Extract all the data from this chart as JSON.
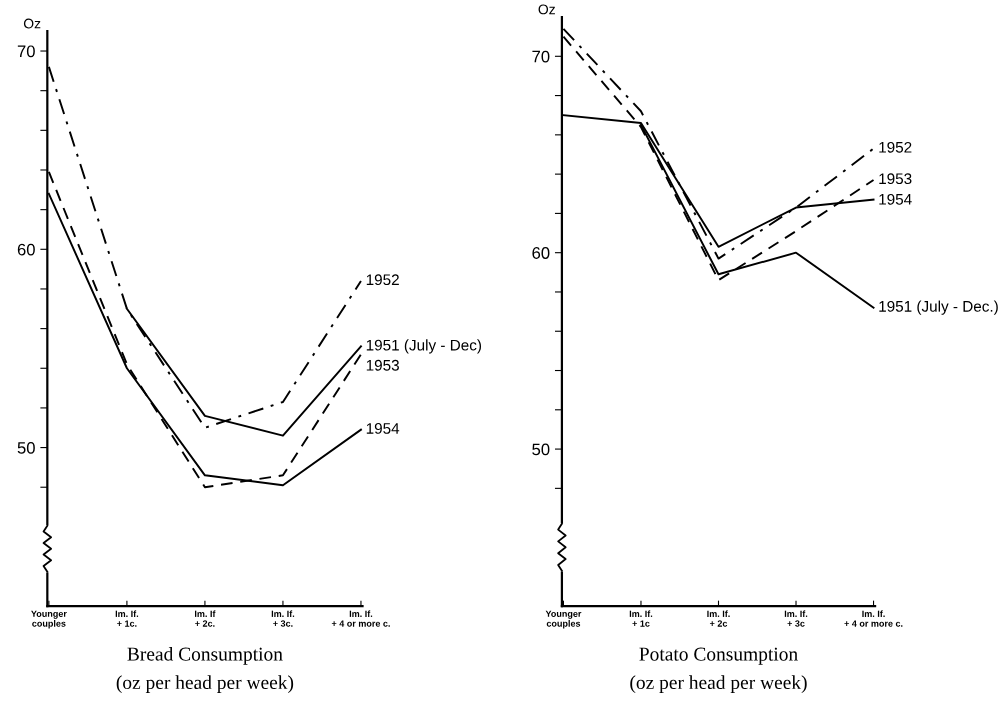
{
  "chart_data": [
    {
      "type": "line",
      "title": "Bread Consumption",
      "subtitle": "(oz per head per week)",
      "ylabel": "Oz",
      "categories": [
        "Younger\ncouples",
        "Im. If.\n+ 1c.",
        "Im. If\n+ 2c.",
        "Im. If.\n+ 3c.",
        "Im. If.\n+ 4 or more c."
      ],
      "ylim": [
        42,
        71
      ],
      "yticks": [
        {
          "value": 48,
          "label": null
        },
        50,
        {
          "value": 52,
          "label": null
        },
        {
          "value": 54,
          "label": null
        },
        {
          "value": 56,
          "label": null
        },
        {
          "value": 58,
          "label": null
        },
        60,
        {
          "value": 62,
          "label": null
        },
        {
          "value": 64,
          "label": null
        },
        {
          "value": 66,
          "label": null
        },
        {
          "value": 68,
          "label": null
        },
        70
      ],
      "grid": false,
      "legend": false,
      "marker": "none",
      "series": [
        {
          "name": "1952",
          "color": "#000000",
          "line_style": "dashdot",
          "values": [
            69.2,
            57.0,
            51.0,
            52.3,
            58.4
          ]
        },
        {
          "name": "1951 (July - Dec)",
          "color": "#000000",
          "line_style": "solid",
          "values": [
            null,
            57.0,
            51.6,
            50.6,
            55.1
          ]
        },
        {
          "name": "1953",
          "color": "#000000",
          "line_style": "dashed",
          "values": [
            63.9,
            54.2,
            48.0,
            48.6,
            54.7
          ]
        },
        {
          "name": "1954",
          "color": "#000000",
          "line_style": "solid",
          "values": [
            62.8,
            54.0,
            48.6,
            48.1,
            50.9
          ]
        }
      ]
    },
    {
      "type": "line",
      "title": "Potato Consumption",
      "subtitle": "(oz per head per week)",
      "ylabel": "Oz",
      "categories": [
        "Younger\ncouples",
        "Im. If.\n+ 1c",
        "Im. If.\n+ 2c",
        "Im. If.\n+ 3c",
        "Im. If.\n+ 4 or more c."
      ],
      "ylim": [
        42,
        72
      ],
      "yticks": [
        {
          "value": 48,
          "label": null
        },
        50,
        {
          "value": 52,
          "label": null
        },
        {
          "value": 54,
          "label": null
        },
        {
          "value": 56,
          "label": null
        },
        {
          "value": 58,
          "label": null
        },
        60,
        {
          "value": 62,
          "label": null
        },
        {
          "value": 64,
          "label": null
        },
        {
          "value": 66,
          "label": null
        },
        {
          "value": 68,
          "label": null
        },
        70
      ],
      "grid": false,
      "legend": false,
      "marker": "none",
      "series": [
        {
          "name": "1952",
          "color": "#000000",
          "line_style": "dashdot",
          "values": [
            71.4,
            67.2,
            59.7,
            62.3,
            65.3
          ]
        },
        {
          "name": "1953",
          "color": "#000000",
          "line_style": "dashed",
          "values": [
            71.0,
            66.4,
            58.6,
            61.1,
            63.7
          ]
        },
        {
          "name": "1954",
          "color": "#000000",
          "line_style": "solid",
          "values": [
            67.0,
            66.6,
            60.3,
            62.3,
            62.7
          ]
        },
        {
          "name": "1951 (July - Dec.)",
          "color": "#000000",
          "line_style": "solid",
          "values": [
            null,
            66.5,
            58.9,
            60.0,
            57.2
          ]
        }
      ]
    }
  ]
}
